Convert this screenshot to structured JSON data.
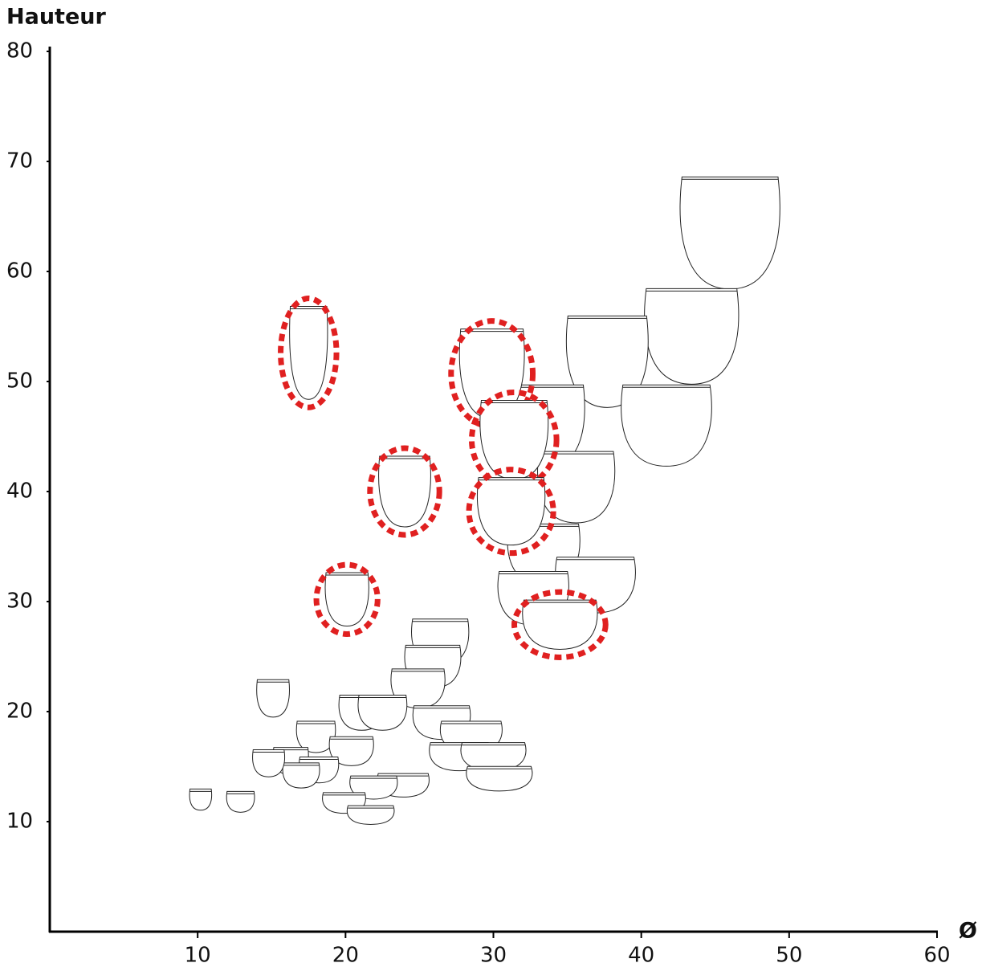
{
  "chart_data": {
    "type": "scatter",
    "y_label": "Hauteur",
    "x_label": "Ø",
    "xlim": [
      0,
      60
    ],
    "ylim": [
      0,
      80
    ],
    "xticks": [
      10,
      20,
      30,
      40,
      50,
      60
    ],
    "yticks": [
      10,
      20,
      30,
      40,
      50,
      60,
      70,
      80
    ],
    "series": [
      {
        "color": "#222222",
        "x": [
          46.0,
          43.4,
          37.7,
          41.7,
          33.7,
          35.6,
          33.4,
          36.9,
          32.7,
          26.4,
          25.9,
          24.9,
          15.1,
          21.1,
          22.5,
          26.5,
          28.5,
          18.0,
          20.4,
          16.3,
          18.2,
          17.0,
          27.7,
          30.0,
          30.4,
          23.9,
          21.9,
          19.9,
          21.7,
          10.2,
          12.9,
          14.8
        ],
        "values": [
          63.5,
          54.1,
          51.8,
          46.0,
          46.0,
          40.4,
          34.3,
          31.5,
          30.3,
          26.3,
          24.1,
          22.1,
          21.2,
          19.9,
          19.9,
          19.0,
          17.7,
          17.7,
          16.4,
          15.5,
          14.7,
          14.2,
          15.9,
          15.9,
          13.9,
          13.3,
          13.1,
          11.7,
          10.6,
          12.0,
          11.8,
          15.3
        ]
      },
      {
        "color": "#e02020",
        "x": [
          17.5,
          29.9,
          31.4,
          24.0,
          31.2,
          20.1,
          34.5
        ],
        "values": [
          52.6,
          50.7,
          44.7,
          40.0,
          38.2,
          30.2,
          27.9
        ]
      }
    ]
  }
}
